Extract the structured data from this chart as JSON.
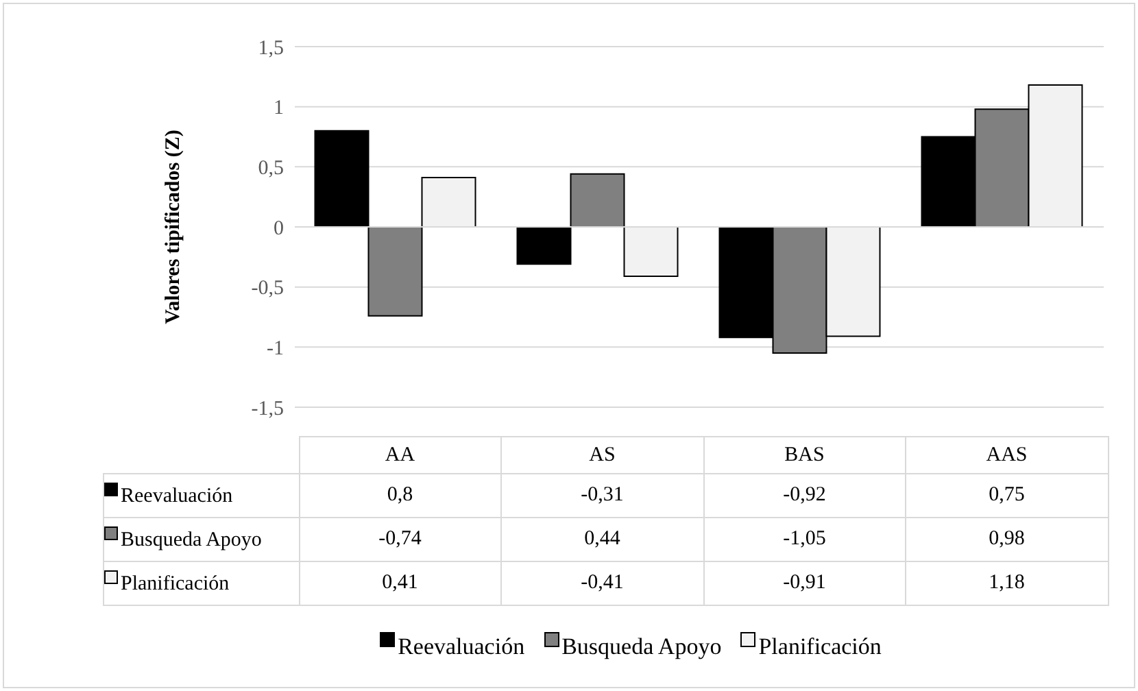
{
  "chart_data": {
    "type": "bar",
    "ylabel": "Valores tipificados (Z)",
    "categories": [
      "AA",
      "AS",
      "BAS",
      "AAS"
    ],
    "series": [
      {
        "name": "Reevaluación",
        "color": "#000000",
        "values": [
          0.8,
          -0.31,
          -0.92,
          0.75
        ],
        "value_labels": [
          "0,8",
          "-0,31",
          "-0,92",
          "0,75"
        ]
      },
      {
        "name": "Busqueda Apoyo",
        "color": "#808080",
        "values": [
          -0.74,
          0.44,
          -1.05,
          0.98
        ],
        "value_labels": [
          "-0,74",
          "0,44",
          "-1,05",
          "0,98"
        ]
      },
      {
        "name": "Planificación",
        "color": "#f2f2f2",
        "values": [
          0.41,
          -0.41,
          -0.91,
          1.18
        ],
        "value_labels": [
          "0,41",
          "-0,41",
          "-0,91",
          "1,18"
        ]
      }
    ],
    "ylim": [
      -1.5,
      1.5
    ],
    "yticks": [
      {
        "value": -1.5,
        "label": "-1,5"
      },
      {
        "value": -1,
        "label": "-1"
      },
      {
        "value": -0.5,
        "label": "-0,5"
      },
      {
        "value": 0,
        "label": "0"
      },
      {
        "value": 0.5,
        "label": "0,5"
      },
      {
        "value": 1,
        "label": "1"
      },
      {
        "value": 1.5,
        "label": "1,5"
      }
    ],
    "grid": "y",
    "legend": "bottom"
  }
}
